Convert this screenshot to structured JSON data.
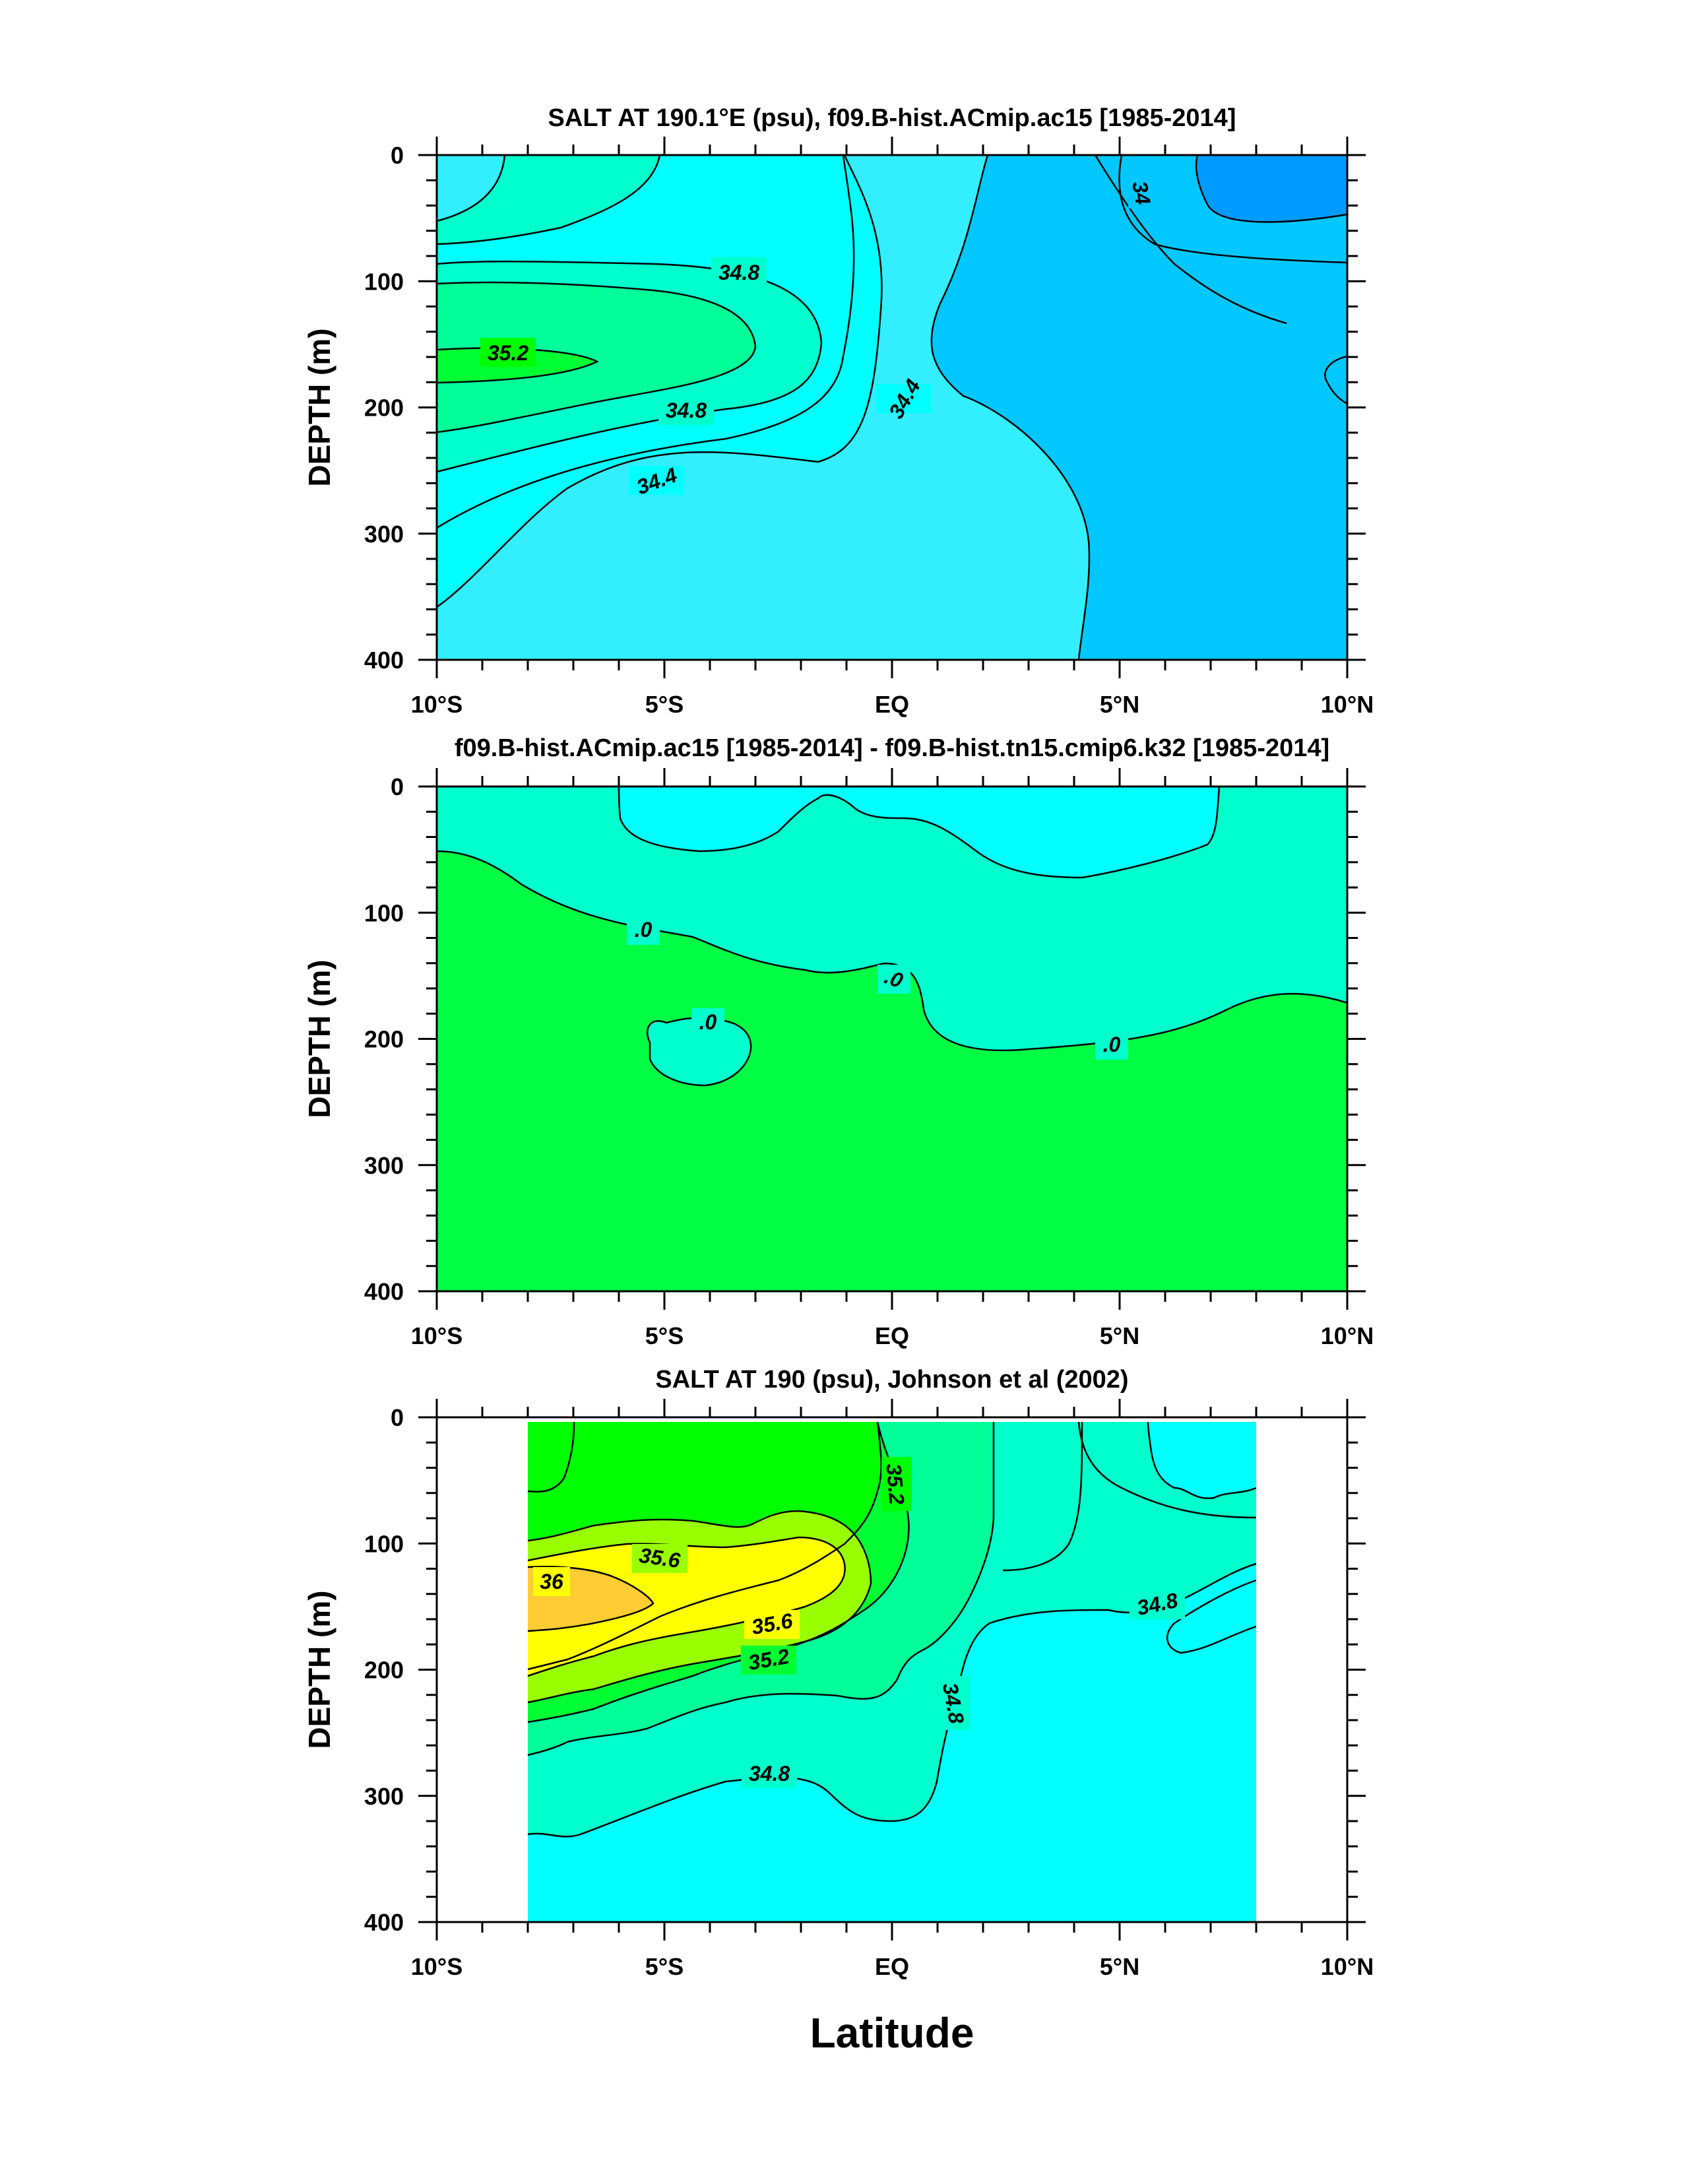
{
  "figure": {
    "xlabel": "Latitude"
  },
  "colors": {
    "c33_8": "#009BFF",
    "c34_0": "#00C8FF",
    "c34_4": "#33EEFF",
    "c34_6": "#00FFFF",
    "c34_8": "#00FFCC",
    "c35_0": "#00FF99",
    "c35_2": "#00FF33",
    "c35_4": "#00FF00",
    "c35_6": "#99FF00",
    "c35_8": "#FFFF00",
    "c36_0": "#FFCC33",
    "diff_neg": "#00FFFF",
    "diff_zero": "#00FFCC",
    "diff_pos": "#00FF44"
  },
  "chart_data": [
    {
      "type": "contour",
      "title": "SALT AT 190.1°E (psu), f09.B-hist.ACmip.ac15 [1985-2014]",
      "ylabel": "DEPTH (m)",
      "xlabel": "",
      "xlim": [
        -10,
        10
      ],
      "ylim": [
        0,
        400
      ],
      "y_reversed": true,
      "x_ticks": [
        -10,
        -5,
        0,
        5,
        10
      ],
      "x_tick_labels": [
        "10°S",
        "5°S",
        "EQ",
        "5°N",
        "10°N"
      ],
      "y_ticks": [
        0,
        100,
        200,
        300,
        400
      ],
      "y_tick_labels": [
        "0",
        "100",
        "200",
        "300",
        "400"
      ],
      "contour_interval": 0.2,
      "contour_labels": [
        "34",
        "34.8",
        "35.2",
        "34.8",
        "34.4",
        "34.4"
      ]
    },
    {
      "type": "contour",
      "title": "f09.B-hist.ACmip.ac15 [1985-2014] - f09.B-hist.tn15.cmip6.k32 [1985-2014]",
      "ylabel": "DEPTH (m)",
      "xlabel": "",
      "xlim": [
        -10,
        10
      ],
      "ylim": [
        0,
        400
      ],
      "y_reversed": true,
      "x_ticks": [
        -10,
        -5,
        0,
        5,
        10
      ],
      "x_tick_labels": [
        "10°S",
        "5°S",
        "EQ",
        "5°N",
        "10°N"
      ],
      "y_ticks": [
        0,
        100,
        200,
        300,
        400
      ],
      "y_tick_labels": [
        "0",
        "100",
        "200",
        "300",
        "400"
      ],
      "contour_labels": [
        ".0",
        ".0",
        ".0",
        ".0"
      ]
    },
    {
      "type": "contour",
      "title": "SALT AT 190 (psu), Johnson et al (2002)",
      "ylabel": "DEPTH (m)",
      "xlabel": "Latitude",
      "xlim": [
        -10,
        10
      ],
      "ylim": [
        0,
        400
      ],
      "y_reversed": true,
      "data_lat_range": [
        -8,
        8
      ],
      "data_depth_range": [
        0,
        400
      ],
      "x_ticks": [
        -10,
        -5,
        0,
        5,
        10
      ],
      "x_tick_labels": [
        "10°S",
        "5°S",
        "EQ",
        "5°N",
        "10°N"
      ],
      "y_ticks": [
        0,
        100,
        200,
        300,
        400
      ],
      "y_tick_labels": [
        "0",
        "100",
        "200",
        "300",
        "400"
      ],
      "contour_interval": 0.2,
      "contour_labels": [
        "35.2",
        "35.6",
        "36",
        "35.6",
        "35.2",
        "34.8",
        "34.8",
        "34.8"
      ]
    }
  ]
}
